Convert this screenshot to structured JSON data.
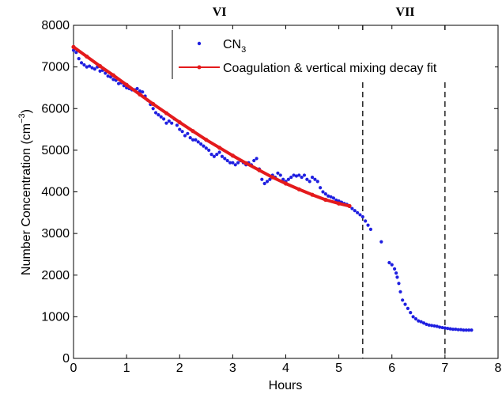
{
  "chart_data": {
    "type": "scatter",
    "title": "",
    "xlabel": "Hours",
    "ylabel_main": "Number Concentration (cm",
    "ylabel_sup": "−3",
    "ylabel_close": ")",
    "xlim": [
      0,
      8
    ],
    "ylim": [
      0,
      8000
    ],
    "xticks": [
      "0",
      "1",
      "2",
      "3",
      "4",
      "5",
      "6",
      "7",
      "8"
    ],
    "yticks": [
      "0",
      "1000",
      "2000",
      "3000",
      "4000",
      "5000",
      "6000",
      "7000",
      "8000"
    ],
    "grid": false,
    "legend_position": "top-right",
    "regions": [
      {
        "label": "VI",
        "x": 2.75
      },
      {
        "label": "VII",
        "x": 6.25
      }
    ],
    "vlines": [
      5.45,
      7.0
    ],
    "series": [
      {
        "name_main": "CN",
        "name_sub": "3",
        "kind": "scatter",
        "color": "#1f1fe0",
        "points": [
          [
            0.0,
            7400
          ],
          [
            0.05,
            7350
          ],
          [
            0.1,
            7200
          ],
          [
            0.15,
            7100
          ],
          [
            0.2,
            7050
          ],
          [
            0.25,
            7000
          ],
          [
            0.3,
            7020
          ],
          [
            0.35,
            6980
          ],
          [
            0.4,
            6950
          ],
          [
            0.45,
            7000
          ],
          [
            0.5,
            6900
          ],
          [
            0.55,
            6920
          ],
          [
            0.6,
            6850
          ],
          [
            0.65,
            6780
          ],
          [
            0.7,
            6760
          ],
          [
            0.75,
            6700
          ],
          [
            0.8,
            6680
          ],
          [
            0.85,
            6600
          ],
          [
            0.9,
            6620
          ],
          [
            0.95,
            6550
          ],
          [
            1.0,
            6500
          ],
          [
            1.05,
            6480
          ],
          [
            1.1,
            6450
          ],
          [
            1.15,
            6450
          ],
          [
            1.2,
            6480
          ],
          [
            1.25,
            6420
          ],
          [
            1.3,
            6400
          ],
          [
            1.35,
            6300
          ],
          [
            1.4,
            6200
          ],
          [
            1.45,
            6100
          ],
          [
            1.5,
            6000
          ],
          [
            1.55,
            5900
          ],
          [
            1.6,
            5850
          ],
          [
            1.65,
            5800
          ],
          [
            1.7,
            5750
          ],
          [
            1.75,
            5650
          ],
          [
            1.8,
            5700
          ],
          [
            1.85,
            5650
          ],
          [
            1.9,
            5750
          ],
          [
            1.95,
            5600
          ],
          [
            2.0,
            5500
          ],
          [
            2.05,
            5450
          ],
          [
            2.1,
            5350
          ],
          [
            2.15,
            5400
          ],
          [
            2.2,
            5300
          ],
          [
            2.25,
            5250
          ],
          [
            2.3,
            5250
          ],
          [
            2.35,
            5200
          ],
          [
            2.4,
            5150
          ],
          [
            2.45,
            5100
          ],
          [
            2.5,
            5050
          ],
          [
            2.55,
            5000
          ],
          [
            2.6,
            4900
          ],
          [
            2.65,
            4850
          ],
          [
            2.7,
            4900
          ],
          [
            2.75,
            4950
          ],
          [
            2.8,
            4850
          ],
          [
            2.85,
            4800
          ],
          [
            2.9,
            4750
          ],
          [
            2.95,
            4700
          ],
          [
            3.0,
            4700
          ],
          [
            3.05,
            4650
          ],
          [
            3.1,
            4700
          ],
          [
            3.15,
            4750
          ],
          [
            3.2,
            4700
          ],
          [
            3.25,
            4650
          ],
          [
            3.3,
            4700
          ],
          [
            3.35,
            4650
          ],
          [
            3.4,
            4750
          ],
          [
            3.45,
            4800
          ],
          [
            3.5,
            4550
          ],
          [
            3.55,
            4300
          ],
          [
            3.6,
            4200
          ],
          [
            3.65,
            4250
          ],
          [
            3.7,
            4300
          ],
          [
            3.75,
            4400
          ],
          [
            3.8,
            4350
          ],
          [
            3.85,
            4450
          ],
          [
            3.9,
            4400
          ],
          [
            3.95,
            4300
          ],
          [
            4.0,
            4250
          ],
          [
            4.05,
            4300
          ],
          [
            4.1,
            4350
          ],
          [
            4.15,
            4400
          ],
          [
            4.2,
            4380
          ],
          [
            4.25,
            4400
          ],
          [
            4.3,
            4350
          ],
          [
            4.35,
            4400
          ],
          [
            4.4,
            4300
          ],
          [
            4.45,
            4250
          ],
          [
            4.5,
            4350
          ],
          [
            4.55,
            4300
          ],
          [
            4.6,
            4250
          ],
          [
            4.65,
            4100
          ],
          [
            4.7,
            4000
          ],
          [
            4.75,
            3950
          ],
          [
            4.8,
            3900
          ],
          [
            4.85,
            3880
          ],
          [
            4.9,
            3850
          ],
          [
            4.95,
            3800
          ],
          [
            5.0,
            3780
          ],
          [
            5.05,
            3750
          ],
          [
            5.1,
            3720
          ],
          [
            5.15,
            3700
          ],
          [
            5.2,
            3650
          ],
          [
            5.25,
            3600
          ],
          [
            5.3,
            3550
          ],
          [
            5.35,
            3500
          ],
          [
            5.4,
            3450
          ],
          [
            5.45,
            3400
          ],
          [
            5.5,
            3300
          ],
          [
            5.55,
            3200
          ],
          [
            5.6,
            3100
          ],
          [
            5.8,
            2800
          ],
          [
            5.95,
            2300
          ],
          [
            6.0,
            2250
          ],
          [
            6.05,
            2150
          ],
          [
            6.08,
            2050
          ],
          [
            6.1,
            1950
          ],
          [
            6.13,
            1800
          ],
          [
            6.16,
            1600
          ],
          [
            6.2,
            1400
          ],
          [
            6.25,
            1300
          ],
          [
            6.3,
            1200
          ],
          [
            6.35,
            1100
          ],
          [
            6.4,
            1000
          ],
          [
            6.45,
            950
          ],
          [
            6.5,
            900
          ],
          [
            6.55,
            880
          ],
          [
            6.6,
            850
          ],
          [
            6.65,
            820
          ],
          [
            6.7,
            800
          ],
          [
            6.75,
            790
          ],
          [
            6.8,
            780
          ],
          [
            6.85,
            770
          ],
          [
            6.9,
            750
          ],
          [
            6.95,
            740
          ],
          [
            7.0,
            730
          ],
          [
            7.05,
            720
          ],
          [
            7.1,
            710
          ],
          [
            7.15,
            700
          ],
          [
            7.2,
            700
          ],
          [
            7.25,
            690
          ],
          [
            7.3,
            690
          ],
          [
            7.35,
            680
          ],
          [
            7.4,
            680
          ],
          [
            7.45,
            680
          ],
          [
            7.5,
            680
          ]
        ]
      },
      {
        "name": "Coagulation & vertical mixing decay fit",
        "kind": "line",
        "color": "#e41a1c",
        "points": [
          [
            0.0,
            7480
          ],
          [
            0.25,
            7250
          ],
          [
            0.5,
            7020
          ],
          [
            0.75,
            6800
          ],
          [
            1.0,
            6570
          ],
          [
            1.25,
            6340
          ],
          [
            1.5,
            6110
          ],
          [
            1.75,
            5890
          ],
          [
            2.0,
            5670
          ],
          [
            2.25,
            5460
          ],
          [
            2.5,
            5250
          ],
          [
            2.75,
            5060
          ],
          [
            3.0,
            4870
          ],
          [
            3.25,
            4690
          ],
          [
            3.5,
            4520
          ],
          [
            3.75,
            4350
          ],
          [
            4.0,
            4200
          ],
          [
            4.25,
            4060
          ],
          [
            4.5,
            3930
          ],
          [
            4.75,
            3810
          ],
          [
            5.0,
            3720
          ],
          [
            5.2,
            3660
          ]
        ]
      }
    ]
  }
}
